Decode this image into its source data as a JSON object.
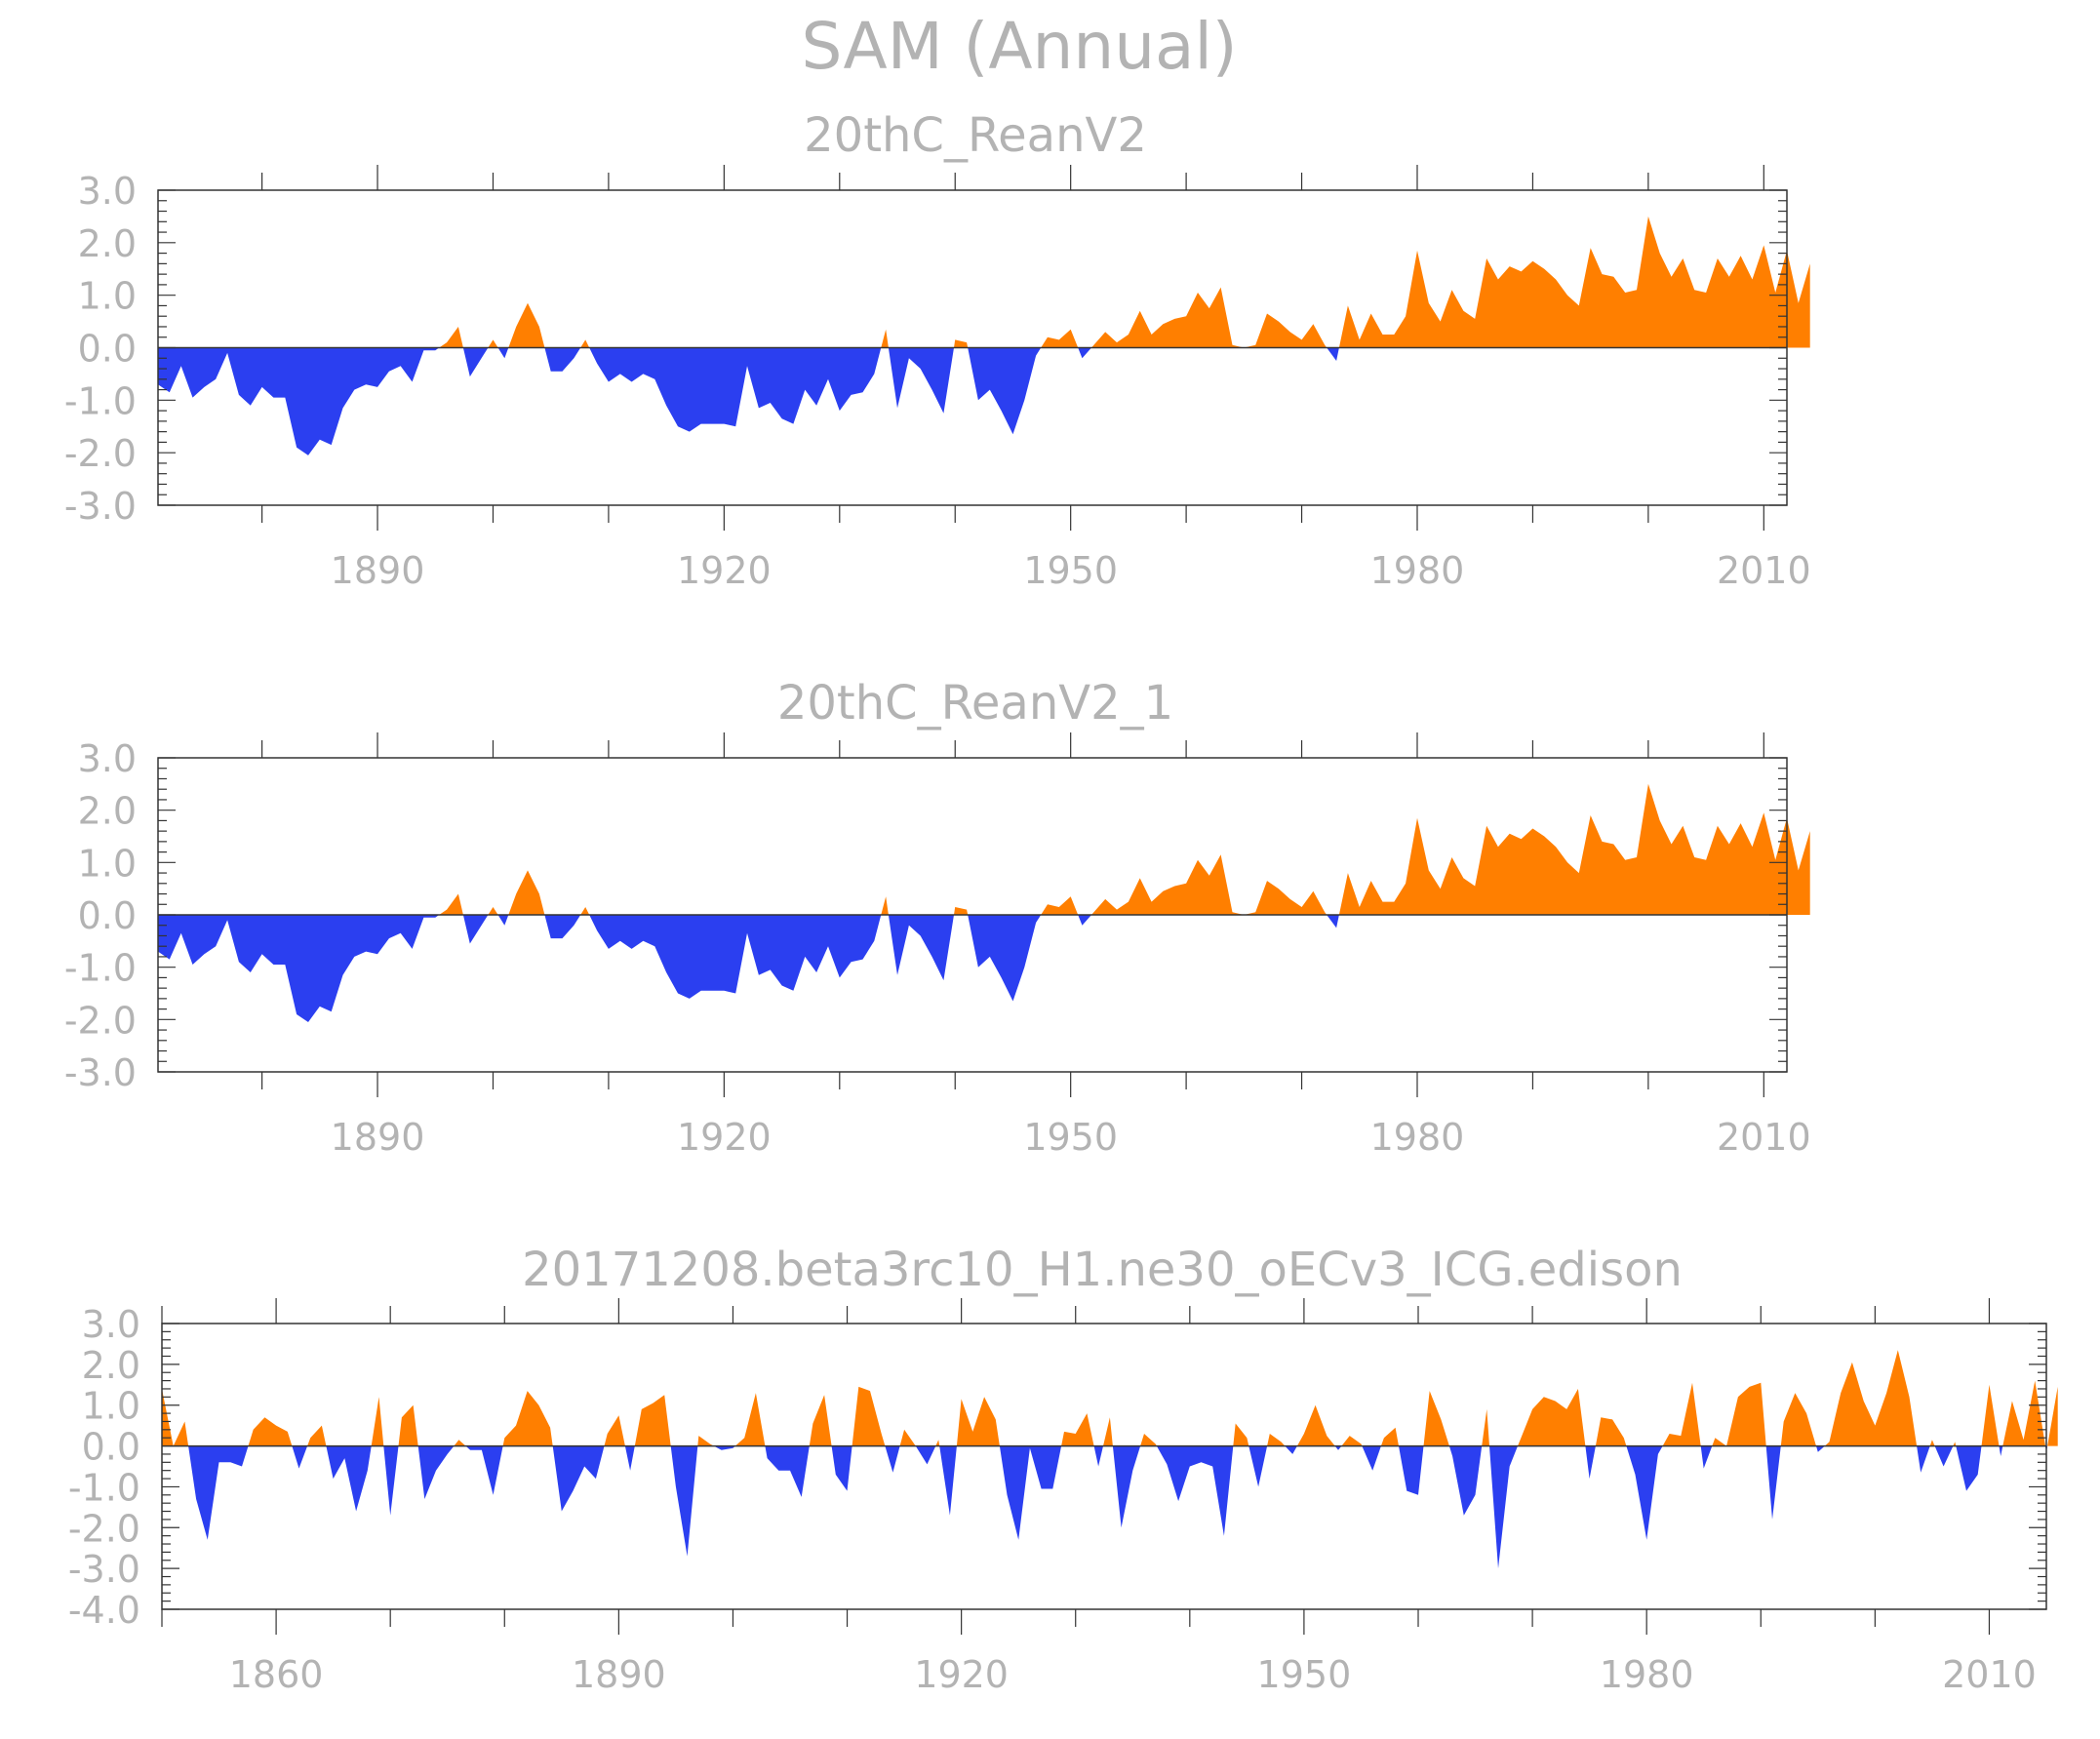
{
  "title": "SAM  (Annual)",
  "colors": {
    "positive": "#ff7f00",
    "negative": "#2b3ff0",
    "frame": "#333333",
    "text": "#b3b3b3"
  },
  "chart_data": [
    {
      "type": "area",
      "title": "20thC_ReanV2",
      "xlim": [
        1871,
        2012
      ],
      "ylim": [
        -3,
        3
      ],
      "yticks": [
        -3,
        -2,
        -1,
        0,
        1,
        2,
        3
      ],
      "ytick_labels": [
        "-3.0",
        "-2.0",
        "-1.0",
        "0.0",
        "1.0",
        "2.0",
        "3.0"
      ],
      "xticks": [
        1890,
        1920,
        1950,
        1980,
        2010
      ],
      "xtick_labels": [
        "1890",
        "1920",
        "1950",
        "1980",
        "2010"
      ],
      "x_start": 1871,
      "values": [
        -0.7,
        -0.85,
        -0.35,
        -0.95,
        -0.75,
        -0.6,
        -0.1,
        -0.9,
        -1.1,
        -0.75,
        -0.95,
        -0.95,
        -1.9,
        -2.05,
        -1.75,
        -1.85,
        -1.15,
        -0.8,
        -0.7,
        -0.75,
        -0.45,
        -0.35,
        -0.65,
        -0.05,
        -0.05,
        0.1,
        0.4,
        -0.55,
        -0.2,
        0.15,
        -0.2,
        0.4,
        0.85,
        0.4,
        -0.45,
        -0.45,
        -0.2,
        0.15,
        -0.3,
        -0.65,
        -0.5,
        -0.65,
        -0.5,
        -0.6,
        -1.1,
        -1.5,
        -1.6,
        -1.45,
        -1.45,
        -1.45,
        -1.5,
        -0.35,
        -1.15,
        -1.05,
        -1.35,
        -1.45,
        -0.8,
        -1.1,
        -0.6,
        -1.2,
        -0.9,
        -0.85,
        -0.5,
        0.35,
        -1.15,
        -0.2,
        -0.4,
        -0.8,
        -1.25,
        0.15,
        0.1,
        -1.0,
        -0.8,
        -1.2,
        -1.65,
        -1.0,
        -0.15,
        0.2,
        0.15,
        0.35,
        -0.2,
        0.05,
        0.3,
        0.1,
        0.25,
        0.7,
        0.25,
        0.45,
        0.55,
        0.6,
        1.05,
        0.75,
        1.15,
        0.05,
        0.0,
        0.05,
        0.65,
        0.5,
        0.3,
        0.15,
        0.45,
        0.05,
        -0.25,
        0.8,
        0.15,
        0.65,
        0.25,
        0.25,
        0.6,
        1.85,
        0.85,
        0.5,
        1.1,
        0.7,
        0.55,
        1.7,
        1.3,
        1.55,
        1.45,
        1.65,
        1.5,
        1.3,
        1.0,
        0.8,
        1.9,
        1.4,
        1.35,
        1.05,
        1.1,
        2.5,
        1.8,
        1.35,
        1.7,
        1.1,
        1.05,
        1.7,
        1.35,
        1.75,
        1.3,
        1.95,
        1.05,
        1.85,
        0.85,
        1.6
      ],
      "pos_color": "#ff7f00",
      "neg_color": "#2b3ff0"
    },
    {
      "type": "area",
      "title": "20thC_ReanV2_1",
      "xlim": [
        1871,
        2012
      ],
      "ylim": [
        -3,
        3
      ],
      "yticks": [
        -3,
        -2,
        -1,
        0,
        1,
        2,
        3
      ],
      "ytick_labels": [
        "-3.0",
        "-2.0",
        "-1.0",
        "0.0",
        "1.0",
        "2.0",
        "3.0"
      ],
      "xticks": [
        1890,
        1920,
        1950,
        1980,
        2010
      ],
      "xtick_labels": [
        "1890",
        "1920",
        "1950",
        "1980",
        "2010"
      ],
      "x_start": 1871,
      "values": [
        -0.7,
        -0.85,
        -0.35,
        -0.95,
        -0.75,
        -0.6,
        -0.1,
        -0.9,
        -1.1,
        -0.75,
        -0.95,
        -0.95,
        -1.9,
        -2.05,
        -1.75,
        -1.85,
        -1.15,
        -0.8,
        -0.7,
        -0.75,
        -0.45,
        -0.35,
        -0.65,
        -0.05,
        -0.05,
        0.1,
        0.4,
        -0.55,
        -0.2,
        0.15,
        -0.2,
        0.4,
        0.85,
        0.4,
        -0.45,
        -0.45,
        -0.2,
        0.15,
        -0.3,
        -0.65,
        -0.5,
        -0.65,
        -0.5,
        -0.6,
        -1.1,
        -1.5,
        -1.6,
        -1.45,
        -1.45,
        -1.45,
        -1.5,
        -0.35,
        -1.15,
        -1.05,
        -1.35,
        -1.45,
        -0.8,
        -1.1,
        -0.6,
        -1.2,
        -0.9,
        -0.85,
        -0.5,
        0.35,
        -1.15,
        -0.2,
        -0.4,
        -0.8,
        -1.25,
        0.15,
        0.1,
        -1.0,
        -0.8,
        -1.2,
        -1.65,
        -1.0,
        -0.15,
        0.2,
        0.15,
        0.35,
        -0.2,
        0.05,
        0.3,
        0.1,
        0.25,
        0.7,
        0.25,
        0.45,
        0.55,
        0.6,
        1.05,
        0.75,
        1.15,
        0.05,
        0.0,
        0.05,
        0.65,
        0.5,
        0.3,
        0.15,
        0.45,
        0.05,
        -0.25,
        0.8,
        0.15,
        0.65,
        0.25,
        0.25,
        0.6,
        1.85,
        0.85,
        0.5,
        1.1,
        0.7,
        0.55,
        1.7,
        1.3,
        1.55,
        1.45,
        1.65,
        1.5,
        1.3,
        1.0,
        0.8,
        1.9,
        1.4,
        1.35,
        1.05,
        1.1,
        2.5,
        1.8,
        1.35,
        1.7,
        1.1,
        1.05,
        1.7,
        1.35,
        1.75,
        1.3,
        1.95,
        1.05,
        1.85,
        0.85,
        1.6
      ],
      "pos_color": "#ff7f00",
      "neg_color": "#2b3ff0"
    },
    {
      "type": "area",
      "title": "20171208.beta3rc10_H1.ne30_oECv3_ICG.edison",
      "xlim": [
        1850,
        2015
      ],
      "ylim": [
        -4,
        3
      ],
      "yticks": [
        -4,
        -3,
        -2,
        -1,
        0,
        1,
        2,
        3
      ],
      "ytick_labels": [
        "-4.0",
        "-3.0",
        "-2.0",
        "-1.0",
        "0.0",
        "1.0",
        "2.0",
        "3.0"
      ],
      "xticks": [
        1860,
        1890,
        1920,
        1950,
        1980,
        2010
      ],
      "xtick_labels": [
        "1860",
        "1890",
        "1920",
        "1950",
        "1980",
        "2010"
      ],
      "x_start": 1850,
      "values": [
        1.4,
        0.0,
        0.6,
        -1.3,
        -2.3,
        -0.4,
        -0.4,
        -0.5,
        0.4,
        0.7,
        0.5,
        0.35,
        -0.55,
        0.2,
        0.5,
        -0.8,
        -0.3,
        -1.6,
        -0.6,
        1.2,
        -1.7,
        0.7,
        1.0,
        -1.3,
        -0.6,
        -0.2,
        0.15,
        -0.1,
        -0.1,
        -1.2,
        0.2,
        0.5,
        1.35,
        1.0,
        0.45,
        -1.6,
        -1.1,
        -0.5,
        -0.8,
        0.3,
        0.75,
        -0.6,
        0.9,
        1.05,
        1.25,
        -1.0,
        -2.7,
        0.25,
        0.05,
        -0.1,
        -0.05,
        0.2,
        1.3,
        -0.3,
        -0.6,
        -0.6,
        -1.25,
        0.55,
        1.25,
        -0.7,
        -1.1,
        1.45,
        1.35,
        0.3,
        -0.65,
        0.4,
        0.0,
        -0.45,
        0.15,
        -1.7,
        1.15,
        0.35,
        1.2,
        0.65,
        -1.2,
        -2.3,
        -0.05,
        -1.05,
        -1.05,
        0.35,
        0.3,
        0.8,
        -0.5,
        0.7,
        -2.0,
        -0.6,
        0.3,
        0.05,
        -0.45,
        -1.35,
        -0.5,
        -0.4,
        -0.5,
        -2.2,
        0.55,
        0.2,
        -1.0,
        0.3,
        0.1,
        -0.2,
        0.3,
        1.0,
        0.25,
        -0.1,
        0.25,
        0.05,
        -0.6,
        0.2,
        0.45,
        -1.1,
        -1.2,
        1.35,
        0.65,
        -0.25,
        -1.7,
        -1.2,
        0.9,
        -3.0,
        -0.5,
        0.2,
        0.9,
        1.2,
        1.1,
        0.9,
        1.4,
        -0.8,
        0.7,
        0.65,
        0.2,
        -0.7,
        -2.3,
        -0.2,
        0.3,
        0.25,
        1.55,
        -0.55,
        0.2,
        0.0,
        1.2,
        1.45,
        1.55,
        -1.8,
        0.6,
        1.3,
        0.8,
        -0.15,
        0.1,
        1.3,
        2.05,
        1.1,
        0.5,
        1.3,
        2.35,
        1.2,
        -0.65,
        0.15,
        -0.5,
        0.1,
        -1.1,
        -0.7,
        1.5,
        -0.25,
        1.1,
        0.15,
        1.6,
        -0.15,
        1.45
      ],
      "pos_color": "#ff7f00",
      "neg_color": "#2b3ff0"
    }
  ]
}
